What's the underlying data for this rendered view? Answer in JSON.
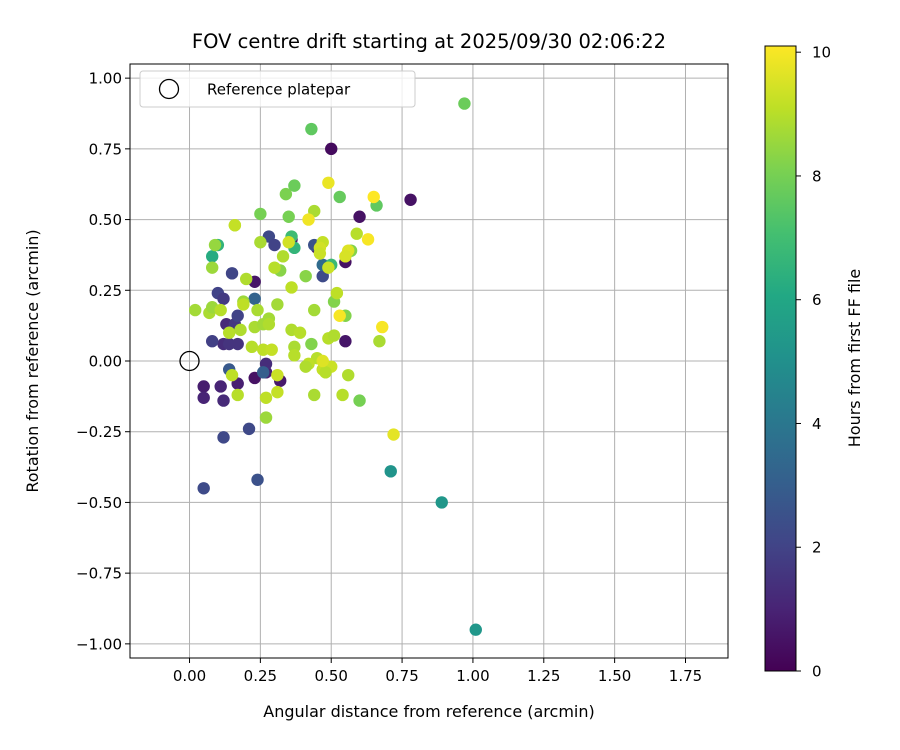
{
  "chart_data": {
    "type": "scatter",
    "title": "FOV centre drift starting at 2025/09/30 02:06:22",
    "xlabel": "Angular distance from reference (arcmin)",
    "ylabel": "Rotation from reference (arcmin)",
    "xlim": [
      -0.21,
      1.9
    ],
    "ylim": [
      -1.05,
      1.05
    ],
    "xticks": [
      0.0,
      0.25,
      0.5,
      0.75,
      1.0,
      1.25,
      1.5,
      1.75
    ],
    "xtick_labels": [
      "0.00",
      "0.25",
      "0.50",
      "0.75",
      "1.00",
      "1.25",
      "1.50",
      "1.75"
    ],
    "yticks": [
      -1.0,
      -0.75,
      -0.5,
      -0.25,
      0.0,
      0.25,
      0.5,
      0.75,
      1.0
    ],
    "ytick_labels": [
      "−1.00",
      "−0.75",
      "−0.50",
      "−0.25",
      "0.00",
      "0.25",
      "0.50",
      "0.75",
      "1.00"
    ],
    "grid": true,
    "legend": {
      "position": "top-left",
      "entries": [
        "Reference platepar"
      ]
    },
    "reference_point": {
      "x": 0.0,
      "y": 0.0,
      "label": "Reference platepar"
    },
    "colorbar": {
      "label": "Hours from first FF file",
      "colormap": "viridis",
      "range": [
        0,
        10.1
      ],
      "ticks": [
        0,
        2,
        4,
        6,
        8,
        10
      ],
      "tick_labels": [
        "0",
        "2",
        "4",
        "6",
        "8",
        "10"
      ]
    },
    "points": [
      {
        "x": 0.5,
        "y": 0.75,
        "t": 0.3
      },
      {
        "x": 0.78,
        "y": 0.57,
        "t": 0.5
      },
      {
        "x": 0.6,
        "y": 0.51,
        "t": 0.5
      },
      {
        "x": 0.55,
        "y": 0.35,
        "t": 0.5
      },
      {
        "x": 0.45,
        "y": 0.4,
        "t": 0.8
      },
      {
        "x": 0.36,
        "y": 0.43,
        "t": 0.6
      },
      {
        "x": 0.23,
        "y": 0.28,
        "t": 0.6
      },
      {
        "x": 0.55,
        "y": 0.07,
        "t": 0.6
      },
      {
        "x": 0.32,
        "y": -0.07,
        "t": 0.7
      },
      {
        "x": 0.23,
        "y": -0.06,
        "t": 0.5
      },
      {
        "x": 0.05,
        "y": -0.09,
        "t": 0.8
      },
      {
        "x": 0.05,
        "y": -0.13,
        "t": 1.0
      },
      {
        "x": 0.12,
        "y": -0.14,
        "t": 1.2
      },
      {
        "x": 0.11,
        "y": -0.09,
        "t": 1.0
      },
      {
        "x": 0.17,
        "y": -0.08,
        "t": 0.9
      },
      {
        "x": 0.27,
        "y": -0.04,
        "t": 0.9
      },
      {
        "x": 0.27,
        "y": -0.01,
        "t": 1.3
      },
      {
        "x": 0.12,
        "y": 0.06,
        "t": 1.3
      },
      {
        "x": 0.14,
        "y": 0.06,
        "t": 1.5
      },
      {
        "x": 0.17,
        "y": 0.06,
        "t": 1.5
      },
      {
        "x": 0.08,
        "y": 0.07,
        "t": 1.9
      },
      {
        "x": 0.13,
        "y": 0.13,
        "t": 1.2
      },
      {
        "x": 0.16,
        "y": 0.13,
        "t": 1.6
      },
      {
        "x": 0.17,
        "y": 0.16,
        "t": 2.0
      },
      {
        "x": 0.1,
        "y": 0.24,
        "t": 2.0
      },
      {
        "x": 0.12,
        "y": 0.22,
        "t": 1.7
      },
      {
        "x": 0.15,
        "y": 0.31,
        "t": 2.1
      },
      {
        "x": 0.28,
        "y": 0.44,
        "t": 2.2
      },
      {
        "x": 0.3,
        "y": 0.41,
        "t": 2.0
      },
      {
        "x": 0.47,
        "y": 0.3,
        "t": 2.3
      },
      {
        "x": 0.44,
        "y": 0.41,
        "t": 2.5
      },
      {
        "x": 0.05,
        "y": -0.45,
        "t": 2.3
      },
      {
        "x": 0.12,
        "y": -0.27,
        "t": 2.2
      },
      {
        "x": 0.21,
        "y": -0.24,
        "t": 2.2
      },
      {
        "x": 0.24,
        "y": -0.42,
        "t": 2.5
      },
      {
        "x": 0.14,
        "y": -0.03,
        "t": 2.8
      },
      {
        "x": 0.26,
        "y": -0.04,
        "t": 3.0
      },
      {
        "x": 0.23,
        "y": 0.22,
        "t": 3.2
      },
      {
        "x": 0.47,
        "y": 0.34,
        "t": 3.5
      },
      {
        "x": 0.71,
        "y": -0.39,
        "t": 5.2
      },
      {
        "x": 0.89,
        "y": -0.5,
        "t": 5.3
      },
      {
        "x": 1.01,
        "y": -0.95,
        "t": 5.3
      },
      {
        "x": 0.08,
        "y": 0.37,
        "t": 6.2
      },
      {
        "x": 0.1,
        "y": 0.41,
        "t": 6.5
      },
      {
        "x": 0.37,
        "y": 0.4,
        "t": 6.6
      },
      {
        "x": 0.5,
        "y": 0.34,
        "t": 6.8
      },
      {
        "x": 0.36,
        "y": 0.44,
        "t": 6.9
      },
      {
        "x": 0.43,
        "y": 0.82,
        "t": 7.6
      },
      {
        "x": 0.97,
        "y": 0.91,
        "t": 7.8
      },
      {
        "x": 0.37,
        "y": 0.62,
        "t": 7.8
      },
      {
        "x": 0.53,
        "y": 0.58,
        "t": 7.7
      },
      {
        "x": 0.66,
        "y": 0.55,
        "t": 7.6
      },
      {
        "x": 0.25,
        "y": 0.52,
        "t": 8.0
      },
      {
        "x": 0.35,
        "y": 0.51,
        "t": 8.0
      },
      {
        "x": 0.34,
        "y": 0.59,
        "t": 8.1
      },
      {
        "x": 0.57,
        "y": 0.39,
        "t": 8.2
      },
      {
        "x": 0.32,
        "y": 0.32,
        "t": 8.3
      },
      {
        "x": 0.41,
        "y": 0.3,
        "t": 8.3
      },
      {
        "x": 0.51,
        "y": 0.21,
        "t": 8.2
      },
      {
        "x": 0.55,
        "y": 0.16,
        "t": 8.2
      },
      {
        "x": 0.6,
        "y": -0.14,
        "t": 8.0
      },
      {
        "x": 0.43,
        "y": 0.06,
        "t": 8.2
      },
      {
        "x": 0.09,
        "y": 0.41,
        "t": 8.5
      },
      {
        "x": 0.08,
        "y": 0.33,
        "t": 8.6
      },
      {
        "x": 0.16,
        "y": 0.48,
        "t": 8.7
      },
      {
        "x": 0.25,
        "y": 0.42,
        "t": 8.8
      },
      {
        "x": 0.33,
        "y": 0.37,
        "t": 8.9
      },
      {
        "x": 0.3,
        "y": 0.33,
        "t": 9.0
      },
      {
        "x": 0.2,
        "y": 0.29,
        "t": 8.9
      },
      {
        "x": 0.36,
        "y": 0.26,
        "t": 9.1
      },
      {
        "x": 0.19,
        "y": 0.21,
        "t": 8.6
      },
      {
        "x": 0.31,
        "y": 0.2,
        "t": 8.7
      },
      {
        "x": 0.24,
        "y": 0.18,
        "t": 8.8
      },
      {
        "x": 0.28,
        "y": 0.15,
        "t": 8.7
      },
      {
        "x": 0.02,
        "y": 0.18,
        "t": 8.7
      },
      {
        "x": 0.07,
        "y": 0.17,
        "t": 8.8
      },
      {
        "x": 0.08,
        "y": 0.19,
        "t": 8.6
      },
      {
        "x": 0.11,
        "y": 0.18,
        "t": 9.0
      },
      {
        "x": 0.14,
        "y": 0.1,
        "t": 9.0
      },
      {
        "x": 0.18,
        "y": 0.11,
        "t": 8.9
      },
      {
        "x": 0.23,
        "y": 0.12,
        "t": 8.8
      },
      {
        "x": 0.26,
        "y": 0.13,
        "t": 8.7
      },
      {
        "x": 0.28,
        "y": 0.13,
        "t": 8.9
      },
      {
        "x": 0.22,
        "y": 0.05,
        "t": 9.0
      },
      {
        "x": 0.26,
        "y": 0.04,
        "t": 9.1
      },
      {
        "x": 0.29,
        "y": 0.04,
        "t": 9.2
      },
      {
        "x": 0.36,
        "y": 0.11,
        "t": 8.9
      },
      {
        "x": 0.39,
        "y": 0.1,
        "t": 9.0
      },
      {
        "x": 0.37,
        "y": 0.05,
        "t": 8.8
      },
      {
        "x": 0.37,
        "y": 0.02,
        "t": 9.0
      },
      {
        "x": 0.44,
        "y": 0.18,
        "t": 8.7
      },
      {
        "x": 0.45,
        "y": 0.01,
        "t": 9.0
      },
      {
        "x": 0.42,
        "y": -0.01,
        "t": 9.1
      },
      {
        "x": 0.47,
        "y": -0.03,
        "t": 9.2
      },
      {
        "x": 0.5,
        "y": -0.02,
        "t": 9.3
      },
      {
        "x": 0.48,
        "y": -0.04,
        "t": 9.0
      },
      {
        "x": 0.44,
        "y": -0.12,
        "t": 8.8
      },
      {
        "x": 0.54,
        "y": -0.12,
        "t": 9.0
      },
      {
        "x": 0.56,
        "y": -0.05,
        "t": 8.9
      },
      {
        "x": 0.49,
        "y": 0.08,
        "t": 9.0
      },
      {
        "x": 0.51,
        "y": 0.09,
        "t": 8.9
      },
      {
        "x": 0.52,
        "y": 0.24,
        "t": 9.1
      },
      {
        "x": 0.47,
        "y": 0.42,
        "t": 9.2
      },
      {
        "x": 0.49,
        "y": 0.33,
        "t": 9.3
      },
      {
        "x": 0.44,
        "y": 0.53,
        "t": 8.8
      },
      {
        "x": 0.46,
        "y": 0.4,
        "t": 9.4
      },
      {
        "x": 0.46,
        "y": 0.38,
        "t": 9.3
      },
      {
        "x": 0.59,
        "y": 0.45,
        "t": 9.0
      },
      {
        "x": 0.56,
        "y": 0.39,
        "t": 9.6
      },
      {
        "x": 0.55,
        "y": 0.37,
        "t": 9.5
      },
      {
        "x": 0.67,
        "y": 0.07,
        "t": 8.8
      },
      {
        "x": 0.72,
        "y": -0.26,
        "t": 9.7
      },
      {
        "x": 0.49,
        "y": 0.63,
        "t": 9.8
      },
      {
        "x": 0.42,
        "y": 0.5,
        "t": 9.9
      },
      {
        "x": 0.53,
        "y": 0.16,
        "t": 10.0
      },
      {
        "x": 0.68,
        "y": 0.12,
        "t": 10.0
      },
      {
        "x": 0.65,
        "y": 0.58,
        "t": 10.1
      },
      {
        "x": 0.63,
        "y": 0.43,
        "t": 10.0
      },
      {
        "x": 0.47,
        "y": 0.0,
        "t": 9.6
      },
      {
        "x": 0.27,
        "y": -0.2,
        "t": 8.6
      },
      {
        "x": 0.27,
        "y": -0.13,
        "t": 9.1
      },
      {
        "x": 0.31,
        "y": -0.11,
        "t": 9.2
      },
      {
        "x": 0.31,
        "y": -0.05,
        "t": 9.3
      },
      {
        "x": 0.17,
        "y": -0.12,
        "t": 9.0
      },
      {
        "x": 0.15,
        "y": -0.05,
        "t": 9.1
      },
      {
        "x": 0.16,
        "y": 0.48,
        "t": 9.2
      },
      {
        "x": 0.35,
        "y": 0.42,
        "t": 9.4
      },
      {
        "x": 0.41,
        "y": -0.02,
        "t": 8.9
      },
      {
        "x": 0.19,
        "y": 0.2,
        "t": 9.1
      }
    ]
  }
}
